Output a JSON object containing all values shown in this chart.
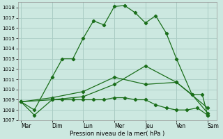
{
  "background_color": "#cce8e0",
  "grid_color": "#aaccc4",
  "line_color": "#1a6e1a",
  "x_labels": [
    "Mar",
    "Dim",
    "Lun",
    "Mer",
    "Jeu",
    "Ven",
    "Sam"
  ],
  "xlabel": "Pression niveau de la mer( hPa )",
  "ylim": [
    1007,
    1018.5
  ],
  "yticks": [
    1007,
    1008,
    1009,
    1010,
    1011,
    1012,
    1013,
    1014,
    1015,
    1016,
    1017,
    1018
  ],
  "line1_x": [
    0,
    0.43,
    1.0,
    1.33,
    1.67,
    2.0,
    2.33,
    2.67,
    3.0,
    3.33,
    3.67,
    4.0,
    4.33,
    4.67,
    5.0,
    5.5,
    5.83,
    6.0
  ],
  "line1_y": [
    1008.8,
    1008.0,
    1011.2,
    1013.0,
    1013.0,
    1015.0,
    1016.7,
    1016.3,
    1018.1,
    1018.2,
    1017.5,
    1016.5,
    1017.2,
    1015.5,
    1013.0,
    1009.5,
    1009.5,
    1007.5
  ],
  "line2_x": [
    0,
    0.43,
    1.0,
    1.33,
    1.67,
    2.0,
    2.33,
    2.67,
    3.0,
    3.33,
    3.67,
    4.0,
    4.33,
    4.67,
    5.0,
    5.33,
    5.67,
    6.0
  ],
  "line2_y": [
    1008.8,
    1007.5,
    1009.0,
    1009.0,
    1009.0,
    1009.0,
    1009.0,
    1009.0,
    1009.2,
    1009.2,
    1009.0,
    1009.0,
    1008.5,
    1008.2,
    1008.0,
    1008.0,
    1008.2,
    1007.5
  ],
  "line3_x": [
    0,
    1.0,
    2.0,
    3.0,
    4.0,
    5.0,
    6.0
  ],
  "line3_y": [
    1008.8,
    1009.0,
    1009.3,
    1010.5,
    1012.3,
    1010.7,
    1008.2
  ],
  "line4_x": [
    0,
    1.0,
    2.0,
    3.0,
    4.0,
    5.0,
    5.5,
    6.0
  ],
  "line4_y": [
    1008.8,
    1009.2,
    1009.8,
    1011.2,
    1010.5,
    1010.7,
    1009.5,
    1007.7
  ]
}
